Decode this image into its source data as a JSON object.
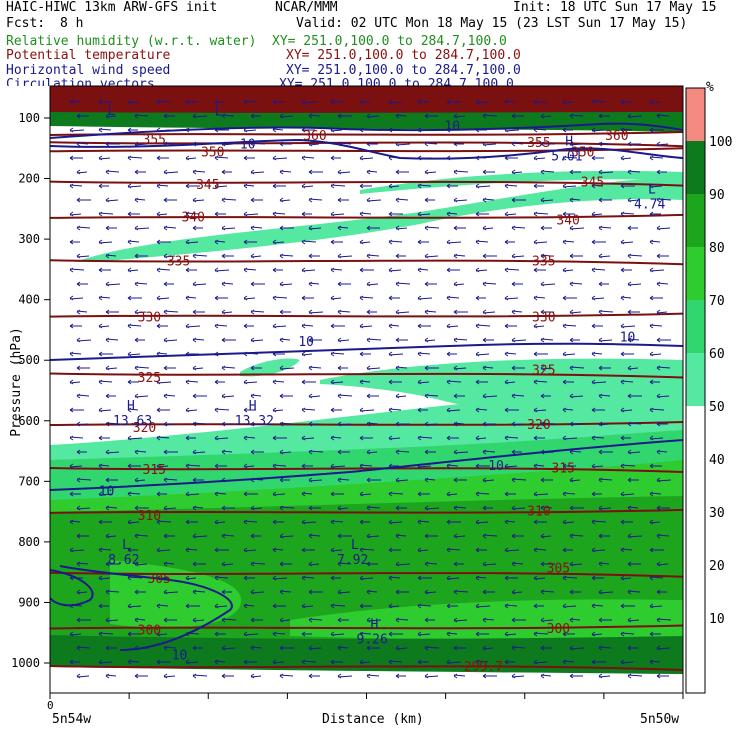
{
  "header": {
    "model": "HAIC-HIWC 13km ARW-GFS init",
    "org": "NCAR/MMM",
    "init": "Init: 18 UTC Sun 17 May 15",
    "fcst_label": "Fcst:",
    "fcst_value": "8 h",
    "valid": "Valid: 02 UTC Mon 18 May 15 (23 LST Sun 17 May 15)"
  },
  "fields": [
    {
      "name": "Relative humidity (w.r.t. water)",
      "xy": "XY= 251.0,100.0 to 284.7,100.0",
      "color": "#1f8f1f"
    },
    {
      "name": "Potential temperature",
      "xy": "XY= 251.0,100.0 to 284.7,100.0",
      "color": "#8b1010"
    },
    {
      "name": "Horizontal wind speed",
      "xy": "XY= 251.0,100.0 to 284.7,100.0",
      "color": "#1a1a8c"
    },
    {
      "name": "Circulation vectors",
      "xy": "XY= 251.0,100.0 to 284.7,100.0",
      "color": "#1a1a8c"
    }
  ],
  "chart_data": {
    "type": "heatmap",
    "ylabel": "Pressure (hPa)",
    "xlabel": "Distance (km)",
    "x_start_label": "0",
    "x_left_label": "5n54w",
    "x_right_label": "5n50w",
    "y_ticks": [
      100,
      200,
      300,
      400,
      500,
      600,
      700,
      800,
      900,
      1000
    ],
    "colorbar": {
      "unit": "%",
      "ticks": [
        10,
        20,
        30,
        40,
        50,
        60,
        70,
        80,
        90,
        100
      ],
      "levels": [
        {
          "from": 50,
          "to": 60,
          "color": "#55e8a0"
        },
        {
          "from": 60,
          "to": 70,
          "color": "#32d66e"
        },
        {
          "from": 70,
          "to": 80,
          "color": "#2fcc2f"
        },
        {
          "from": 80,
          "to": 90,
          "color": "#1ea51e"
        },
        {
          "from": 90,
          "to": 100,
          "color": "#0e7a1e"
        },
        {
          "from": 100,
          "to": 110,
          "color": "#f58a80"
        }
      ]
    },
    "theta_labels": [
      {
        "text": "360",
        "x": 0.52,
        "p": 128
      },
      {
        "text": "360",
        "x": 1.14,
        "p": 128
      },
      {
        "text": "355",
        "x": 0.19,
        "p": 135
      },
      {
        "text": "355",
        "x": 0.98,
        "p": 140
      },
      {
        "text": "350",
        "x": 0.31,
        "p": 155
      },
      {
        "text": "350",
        "x": 1.07,
        "p": 155
      },
      {
        "text": "345",
        "x": 0.3,
        "p": 209
      },
      {
        "text": "345",
        "x": 1.09,
        "p": 205
      },
      {
        "text": "340",
        "x": 0.27,
        "p": 263
      },
      {
        "text": "340",
        "x": 1.04,
        "p": 268
      },
      {
        "text": "335",
        "x": 0.24,
        "p": 335
      },
      {
        "text": "335",
        "x": 0.99,
        "p": 335
      },
      {
        "text": "330",
        "x": 0.18,
        "p": 428
      },
      {
        "text": "330",
        "x": 0.99,
        "p": 428
      },
      {
        "text": "325",
        "x": 0.18,
        "p": 528
      },
      {
        "text": "325",
        "x": 0.99,
        "p": 515
      },
      {
        "text": "320",
        "x": 0.17,
        "p": 610
      },
      {
        "text": "320",
        "x": 0.98,
        "p": 605
      },
      {
        "text": "315",
        "x": 0.19,
        "p": 680
      },
      {
        "text": "315",
        "x": 1.03,
        "p": 677
      },
      {
        "text": "310",
        "x": 0.18,
        "p": 756
      },
      {
        "text": "310",
        "x": 0.98,
        "p": 748
      },
      {
        "text": "305",
        "x": 0.2,
        "p": 860
      },
      {
        "text": "305",
        "x": 1.02,
        "p": 842
      },
      {
        "text": "300",
        "x": 0.18,
        "p": 945
      },
      {
        "text": "300",
        "x": 1.02,
        "p": 942
      },
      {
        "text": "299.7",
        "x": 0.85,
        "p": 1005
      }
    ],
    "wind_labels": [
      {
        "text": "10",
        "x": 0.39,
        "p": 142
      },
      {
        "text": "10",
        "x": 0.81,
        "p": 112
      },
      {
        "text": "10",
        "x": 0.51,
        "p": 468
      },
      {
        "text": "10",
        "x": 1.17,
        "p": 461
      },
      {
        "text": "10",
        "x": 0.1,
        "p": 715
      },
      {
        "text": "10",
        "x": 0.9,
        "p": 673
      },
      {
        "text": "10",
        "x": 0.25,
        "p": 986
      }
    ],
    "extrema_labels": [
      {
        "symbol": "L",
        "value": "",
        "x": 0.33,
        "p": 96
      },
      {
        "symbol": "L",
        "value": "",
        "x": 0.11,
        "p": 95
      },
      {
        "symbol": "H",
        "value": "5.01",
        "x": 1.05,
        "p": 145
      },
      {
        "symbol": "L",
        "value": "4.74",
        "x": 1.22,
        "p": 225
      },
      {
        "symbol": "H",
        "value": "13.63",
        "x": 0.15,
        "p": 582
      },
      {
        "symbol": "H",
        "value": "13.32",
        "x": 0.4,
        "p": 582
      },
      {
        "symbol": "L",
        "value": "8.62",
        "x": 0.14,
        "p": 812
      },
      {
        "symbol": "L",
        "value": "7.92",
        "x": 0.61,
        "p": 812
      },
      {
        "symbol": "H",
        "value": "9.26",
        "x": 0.65,
        "p": 943
      }
    ]
  }
}
